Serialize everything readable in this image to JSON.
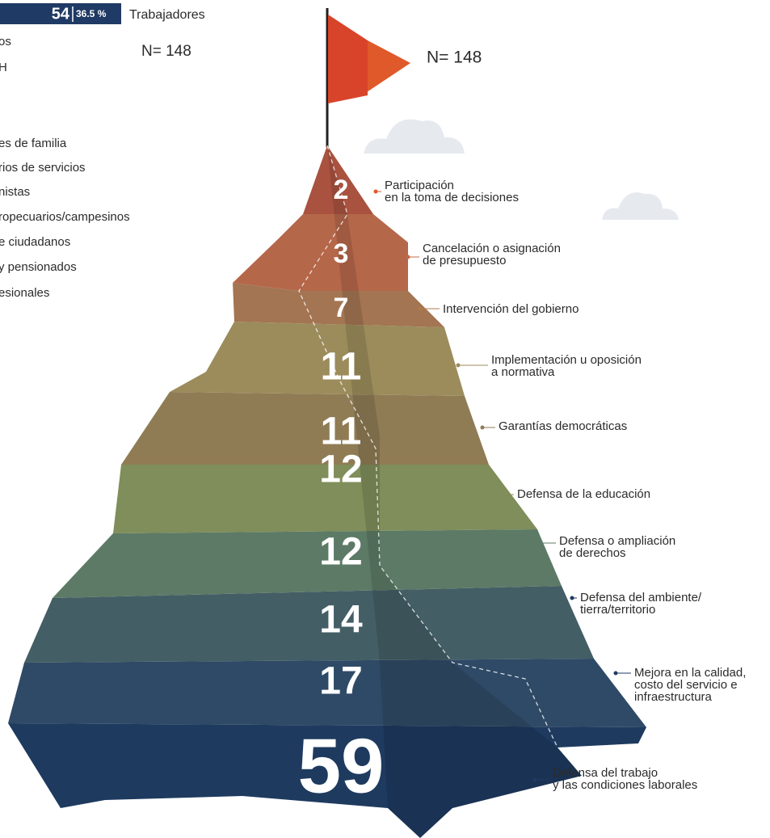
{
  "header": {
    "count": "54",
    "percent": "36.5 %",
    "label": "Trabajadores",
    "n_left": "N= 148"
  },
  "partial_list": [
    "os",
    "H",
    "es de familia",
    "rios de servicios",
    "nistas",
    "ropecuarios/campesinos",
    "e ciudadanos",
    " y pensionados",
    "esionales"
  ],
  "n_right": "N= 148",
  "layers": [
    {
      "value": 2,
      "lines": [
        "Participación",
        "en la toma de decisiones"
      ]
    },
    {
      "value": 3,
      "lines": [
        "Cancelación o asignación",
        "de presupuesto"
      ]
    },
    {
      "value": 7,
      "lines": [
        "Intervención del gobierno"
      ]
    },
    {
      "value": 11,
      "lines": [
        "Implementación u oposición",
        "a normativa"
      ]
    },
    {
      "value": 11,
      "lines": [
        "Garantías democráticas"
      ]
    },
    {
      "value": 12,
      "lines": [
        "Defensa de la educación"
      ]
    },
    {
      "value": 12,
      "lines": [
        "Defensa o ampliación",
        "de derechos"
      ]
    },
    {
      "value": 14,
      "lines": [
        "Defensa del ambiente/",
        "tierra/territorio"
      ]
    },
    {
      "value": 17,
      "lines": [
        "Mejora en la calidad,",
        "costo del servicio e",
        "infraestructura"
      ]
    },
    {
      "value": 59,
      "lines": [
        "Defensa del trabajo",
        "y las condiciones laborales"
      ]
    }
  ]
}
